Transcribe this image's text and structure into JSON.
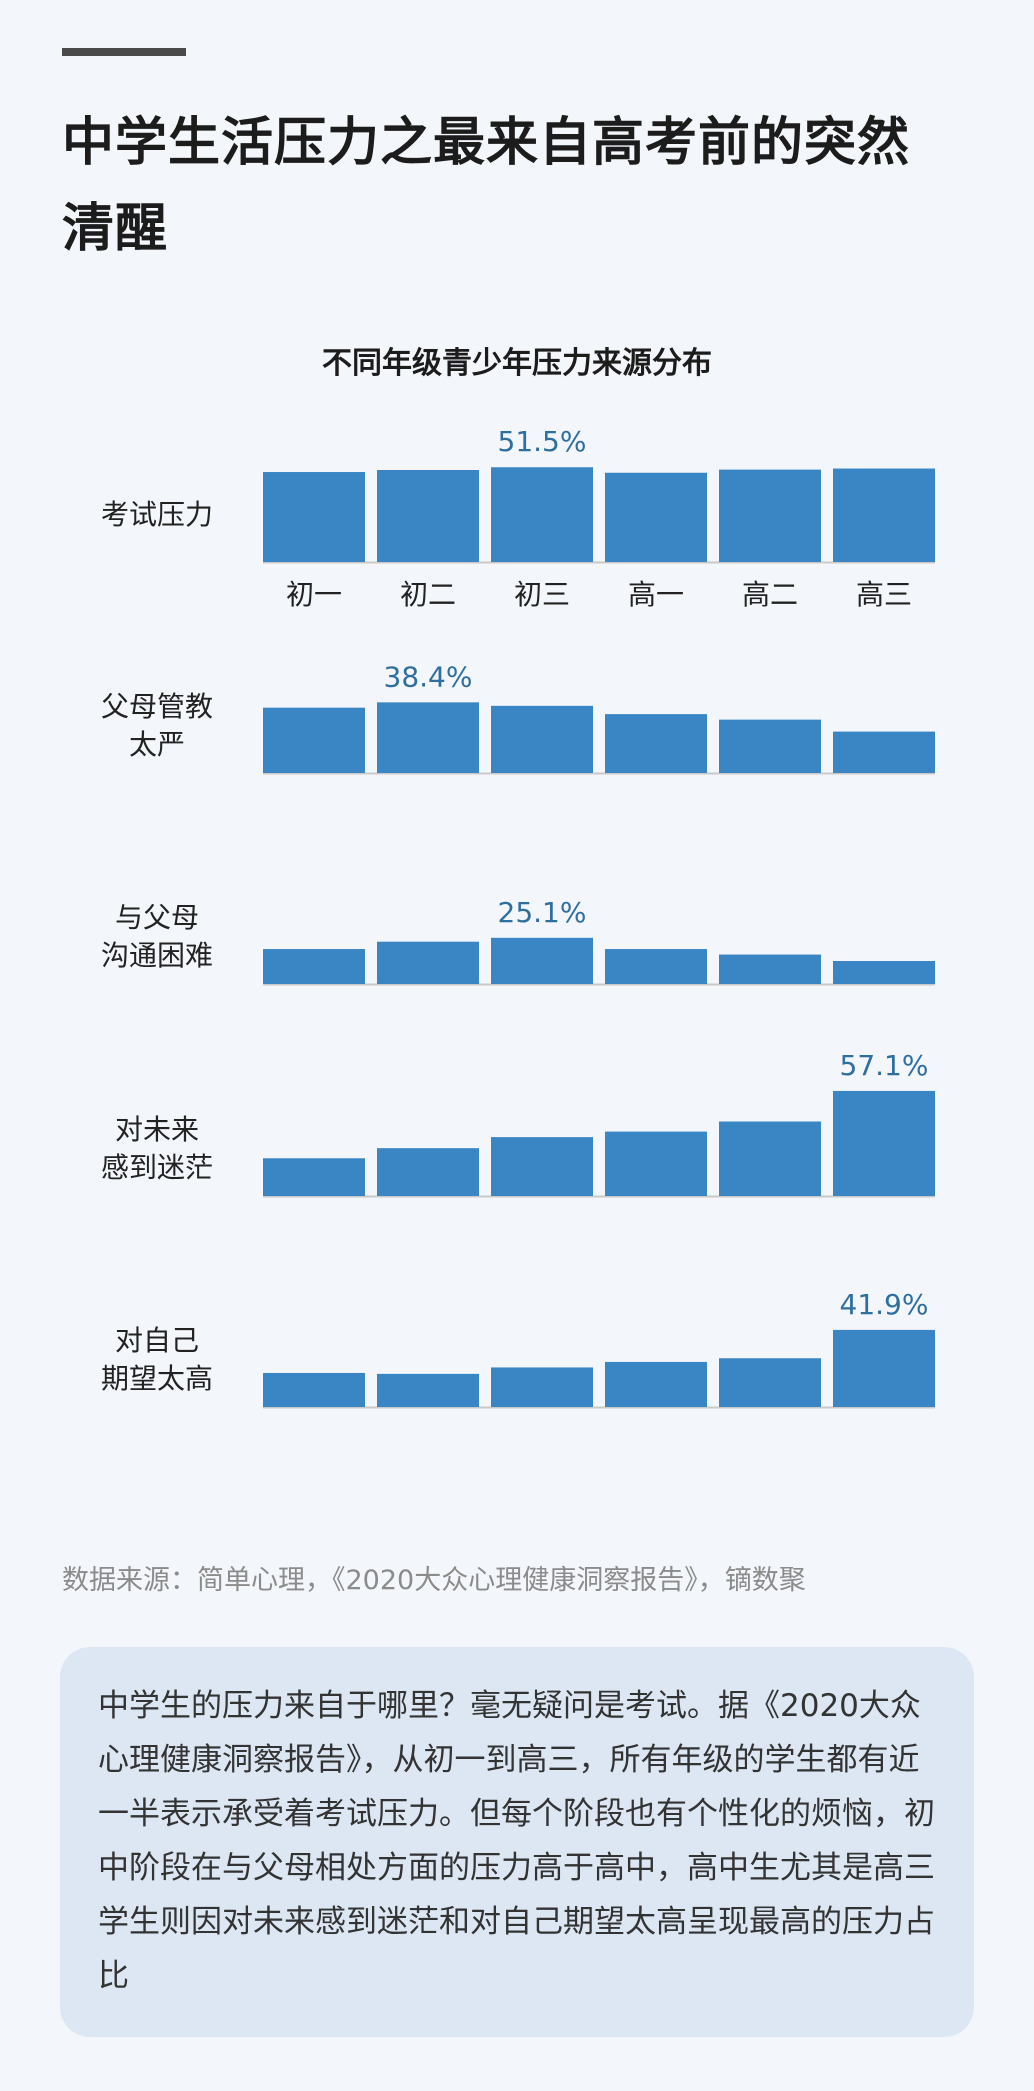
{
  "page": {
    "title": "中学生活压力之最来自高考前的突然清醒",
    "source": "数据来源：简单心理，《2020大众心理健康洞察报告》，镝数聚",
    "summary": "中学生的压力来自于哪里？毫无疑问是考试。据《2020大众心理健康洞察报告》，从初一到高三，所有年级的学生都有近一半表示承受着考试压力。但每个阶段也有个性化的烦恼，初中阶段在与父母相处方面的压力高于高中，高中生尤其是高三学生则因对未来感到迷茫和对自己期望太高呈现最高的压力占比"
  },
  "chart_data": {
    "type": "bar",
    "title": "不同年级青少年压力来源分布",
    "categories": [
      "初一",
      "初二",
      "初三",
      "高一",
      "高二",
      "高三"
    ],
    "bar_color": "#3a86c4",
    "label_color": "#2f6f9f",
    "series": [
      {
        "name": "考试压力",
        "values": [
          48.9,
          50.0,
          51.5,
          48.5,
          50.2,
          50.8
        ],
        "labeled_index": 2,
        "labeled_text": "51.5%"
      },
      {
        "name": "父母管教太严",
        "values": [
          35.5,
          38.4,
          36.5,
          32.0,
          29.0,
          22.5
        ],
        "labeled_index": 1,
        "labeled_text": "38.4%"
      },
      {
        "name": "与父母沟通困难",
        "values": [
          19.0,
          23.0,
          25.1,
          19.0,
          16.0,
          12.5
        ],
        "labeled_index": 2,
        "labeled_text": "25.1%"
      },
      {
        "name": "对未来感到迷茫",
        "values": [
          20.5,
          26.0,
          32.0,
          35.0,
          40.5,
          57.1
        ],
        "labeled_index": 5,
        "labeled_text": "57.1%"
      },
      {
        "name": "对自己期望太高",
        "values": [
          18.5,
          18.0,
          21.5,
          24.5,
          26.5,
          41.9
        ],
        "labeled_index": 5,
        "labeled_text": "41.9%"
      }
    ]
  }
}
